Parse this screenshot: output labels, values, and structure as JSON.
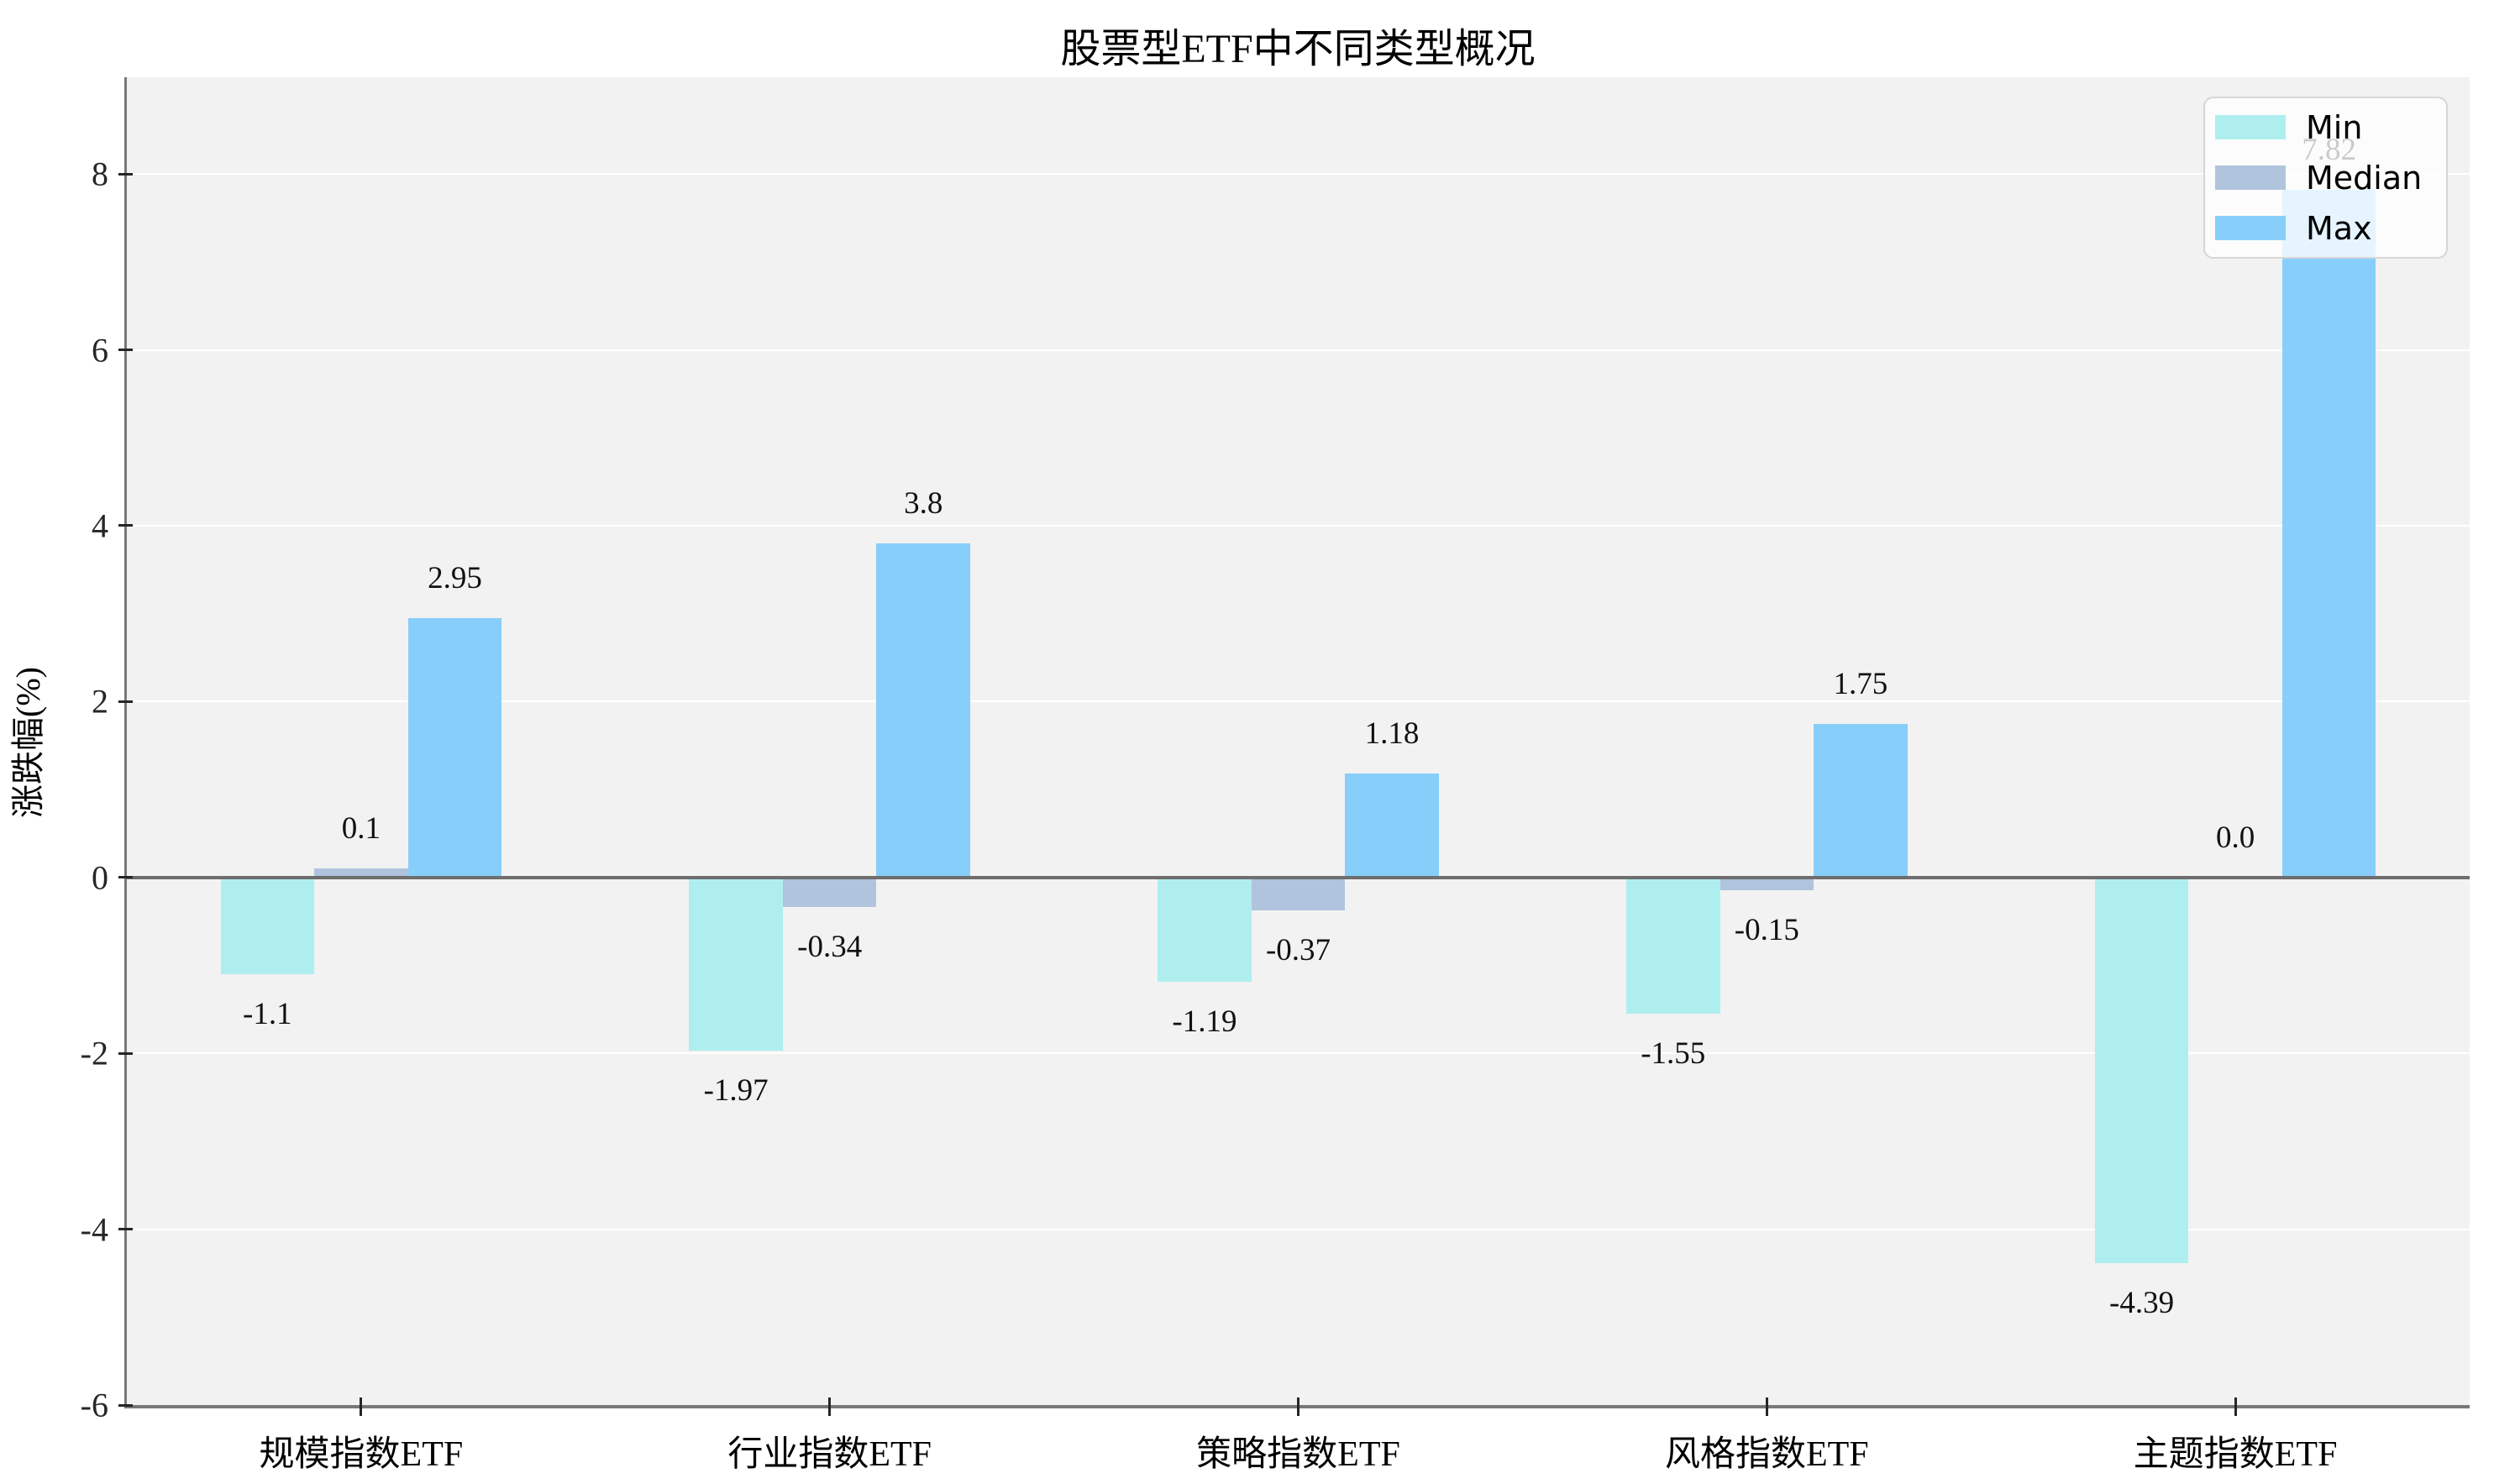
{
  "chart": {
    "title": "股票型ETF中不同类型概况",
    "ylabel": "涨跌幅(%)"
  },
  "chart_data": {
    "type": "bar",
    "title": "股票型ETF中不同类型概况",
    "xlabel": "",
    "ylabel": "涨跌幅(%)",
    "categories": [
      "规模指数ETF",
      "行业指数ETF",
      "策略指数ETF",
      "风格指数ETF",
      "主题指数ETF"
    ],
    "series": [
      {
        "name": "Min",
        "color": "#AFEEEE",
        "values": [
          -1.1,
          -1.97,
          -1.19,
          -1.55,
          -4.39
        ],
        "labels": [
          "-1.1",
          "-1.97",
          "-1.19",
          "-1.55",
          "-4.39"
        ]
      },
      {
        "name": "Median",
        "color": "#B0C4DE",
        "values": [
          0.1,
          -0.34,
          -0.37,
          -0.15,
          0.0
        ],
        "labels": [
          "0.1",
          "-0.34",
          "-0.37",
          "-0.15",
          "0.0"
        ]
      },
      {
        "name": "Max",
        "color": "#87CEFA",
        "values": [
          2.95,
          3.8,
          1.18,
          1.75,
          7.82
        ],
        "labels": [
          "2.95",
          "3.8",
          "1.18",
          "1.75",
          "7.82"
        ]
      }
    ],
    "yticks": [
      8,
      6,
      4,
      2,
      0,
      -2,
      -4,
      -6
    ],
    "ytick_labels": [
      "8",
      "6",
      "4",
      "2",
      "0",
      "-2",
      "-4",
      "-6"
    ],
    "ylim": [
      -6,
      9.1
    ],
    "grid": true,
    "legend_position": "upper right",
    "legend_entries": [
      "Min",
      "Median",
      "Max"
    ],
    "colors": {
      "plot_background": "#f2f2f2",
      "figure_background": "#ffffff",
      "gridline": "#ffffff",
      "zero_line": "#6e6e6e",
      "spine": "#787878"
    }
  }
}
